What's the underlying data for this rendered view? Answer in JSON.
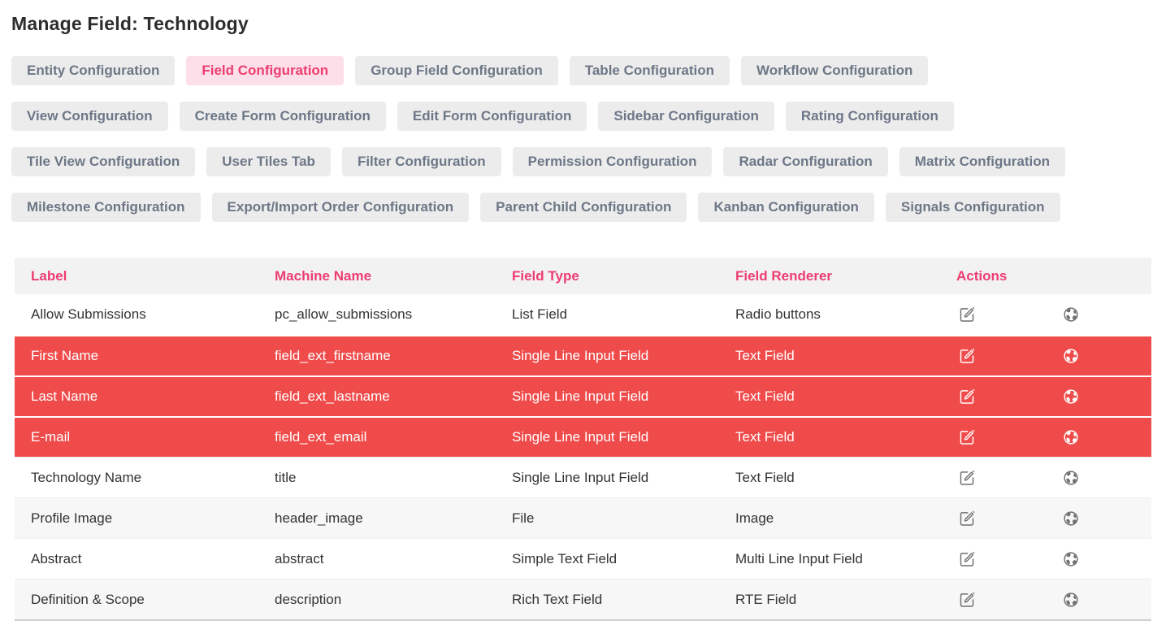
{
  "page": {
    "title": "Manage Field: Technology"
  },
  "colors": {
    "accent_pink": "#ee3d70",
    "active_tab_bg": "#fcdfe9",
    "tab_bg": "#ececec",
    "tab_text": "#6d7787",
    "highlight_red": "#f04b4b",
    "header_bg": "#f2f2f2",
    "stripe_bg": "#f7f7f7"
  },
  "tabs": {
    "rows": [
      [
        {
          "label": "Entity Configuration",
          "active": false
        },
        {
          "label": "Field Configuration",
          "active": true
        },
        {
          "label": "Group Field Configuration",
          "active": false
        },
        {
          "label": "Table Configuration",
          "active": false
        },
        {
          "label": "Workflow Configuration",
          "active": false
        }
      ],
      [
        {
          "label": "View Configuration",
          "active": false
        },
        {
          "label": "Create Form Configuration",
          "active": false
        },
        {
          "label": "Edit Form Configuration",
          "active": false
        },
        {
          "label": "Sidebar Configuration",
          "active": false
        },
        {
          "label": "Rating Configuration",
          "active": false
        }
      ],
      [
        {
          "label": "Tile View Configuration",
          "active": false
        },
        {
          "label": "User Tiles Tab",
          "active": false
        },
        {
          "label": "Filter Configuration",
          "active": false
        },
        {
          "label": "Permission Configuration",
          "active": false
        },
        {
          "label": "Radar Configuration",
          "active": false
        },
        {
          "label": "Matrix Configuration",
          "active": false
        }
      ],
      [
        {
          "label": "Milestone Configuration",
          "active": false
        },
        {
          "label": "Export/Import Order Configuration",
          "active": false
        },
        {
          "label": "Parent Child Configuration",
          "active": false
        },
        {
          "label": "Kanban Configuration",
          "active": false
        },
        {
          "label": "Signals Configuration",
          "active": false
        }
      ]
    ]
  },
  "table": {
    "columns": [
      "Label",
      "Machine Name",
      "Field Type",
      "Field Renderer",
      "Actions"
    ],
    "action_icons": [
      "edit-icon",
      "globe-icon"
    ],
    "rows": [
      {
        "label": "Allow Submissions",
        "machine_name": "pc_allow_submissions",
        "field_type": "List Field",
        "field_renderer": "Radio buttons",
        "highlighted": false
      },
      {
        "label": "First Name",
        "machine_name": "field_ext_firstname",
        "field_type": "Single Line Input Field",
        "field_renderer": "Text Field",
        "highlighted": true
      },
      {
        "label": "Last Name",
        "machine_name": "field_ext_lastname",
        "field_type": "Single Line Input Field",
        "field_renderer": "Text Field",
        "highlighted": true
      },
      {
        "label": "E-mail",
        "machine_name": "field_ext_email",
        "field_type": "Single Line Input Field",
        "field_renderer": "Text Field",
        "highlighted": true
      },
      {
        "label": "Technology Name",
        "machine_name": "title",
        "field_type": "Single Line Input Field",
        "field_renderer": "Text Field",
        "highlighted": false
      },
      {
        "label": "Profile Image",
        "machine_name": "header_image",
        "field_type": "File",
        "field_renderer": "Image",
        "highlighted": false
      },
      {
        "label": "Abstract",
        "machine_name": "abstract",
        "field_type": "Simple Text Field",
        "field_renderer": "Multi Line Input Field",
        "highlighted": false
      },
      {
        "label": "Definition & Scope",
        "machine_name": "description",
        "field_type": "Rich Text Field",
        "field_renderer": "RTE Field",
        "highlighted": false
      }
    ]
  }
}
